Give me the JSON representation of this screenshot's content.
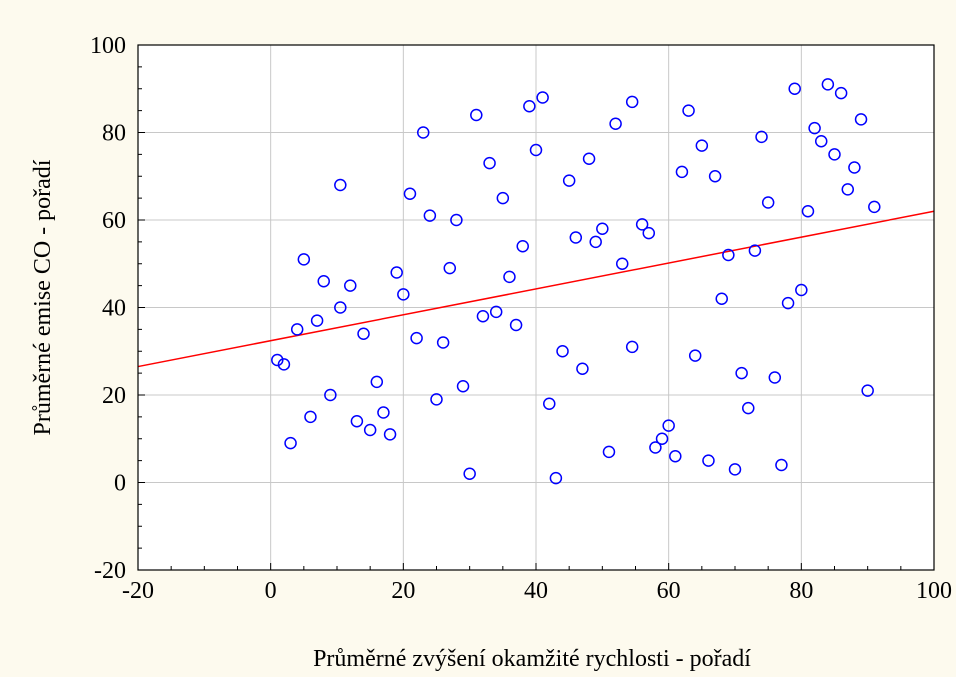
{
  "chart_data": {
    "type": "scatter",
    "title": "",
    "xlabel": "Průměrné zvýšení okamžité rychlosti - pořadí",
    "ylabel": "Průměrné emise CO - pořadí",
    "xlim": [
      -20,
      100
    ],
    "ylim": [
      -20,
      100
    ],
    "xticks": [
      "-20",
      "0",
      "20",
      "40",
      "60",
      "80",
      "100"
    ],
    "yticks": [
      "-20",
      "0",
      "20",
      "40",
      "60",
      "80",
      "100"
    ],
    "grid": true,
    "colors": {
      "background": "#fdfaee",
      "plot_area": "#ffffff",
      "grid": "#c8c8c8",
      "points": "#0000ff",
      "trend_line": "#ff0000"
    },
    "series": [
      {
        "type": "scatter",
        "points": [
          [
            1,
            28
          ],
          [
            2,
            27
          ],
          [
            3,
            9
          ],
          [
            4,
            35
          ],
          [
            5,
            51
          ],
          [
            6,
            15
          ],
          [
            7,
            37
          ],
          [
            8,
            46
          ],
          [
            9,
            20
          ],
          [
            10.5,
            40
          ],
          [
            10.5,
            68
          ],
          [
            12,
            45
          ],
          [
            13,
            14
          ],
          [
            14,
            34
          ],
          [
            15,
            12
          ],
          [
            16,
            23
          ],
          [
            17,
            16
          ],
          [
            18,
            11
          ],
          [
            19,
            48
          ],
          [
            20,
            43
          ],
          [
            21,
            66
          ],
          [
            22,
            33
          ],
          [
            23,
            80
          ],
          [
            24,
            61
          ],
          [
            25,
            19
          ],
          [
            26,
            32
          ],
          [
            27,
            49
          ],
          [
            28,
            60
          ],
          [
            29,
            22
          ],
          [
            30,
            2
          ],
          [
            31,
            84
          ],
          [
            32,
            38
          ],
          [
            33,
            73
          ],
          [
            34,
            39
          ],
          [
            35,
            65
          ],
          [
            36,
            47
          ],
          [
            37,
            36
          ],
          [
            38,
            54
          ],
          [
            39,
            86
          ],
          [
            40,
            76
          ],
          [
            41,
            88
          ],
          [
            42,
            18
          ],
          [
            43,
            1
          ],
          [
            44,
            30
          ],
          [
            45,
            69
          ],
          [
            46,
            56
          ],
          [
            47,
            26
          ],
          [
            48,
            74
          ],
          [
            49,
            55
          ],
          [
            50,
            58
          ],
          [
            51,
            7
          ],
          [
            52,
            82
          ],
          [
            53,
            50
          ],
          [
            54.5,
            87
          ],
          [
            54.5,
            31
          ],
          [
            56,
            59
          ],
          [
            57,
            57
          ],
          [
            58,
            8
          ],
          [
            59,
            10
          ],
          [
            60,
            13
          ],
          [
            61,
            6
          ],
          [
            62,
            71
          ],
          [
            63,
            85
          ],
          [
            64,
            29
          ],
          [
            65,
            77
          ],
          [
            66,
            5
          ],
          [
            67,
            70
          ],
          [
            68,
            42
          ],
          [
            69,
            52
          ],
          [
            70,
            3
          ],
          [
            71,
            25
          ],
          [
            72,
            17
          ],
          [
            73,
            53
          ],
          [
            74,
            79
          ],
          [
            75,
            64
          ],
          [
            76,
            24
          ],
          [
            77,
            4
          ],
          [
            78,
            41
          ],
          [
            79,
            90
          ],
          [
            80,
            44
          ],
          [
            81,
            62
          ],
          [
            82,
            81
          ],
          [
            83,
            78
          ],
          [
            84,
            91
          ],
          [
            85,
            75
          ],
          [
            86,
            89
          ],
          [
            87,
            67
          ],
          [
            88,
            72
          ],
          [
            89,
            83
          ],
          [
            90,
            21
          ],
          [
            91,
            63
          ]
        ]
      }
    ],
    "trend_line": {
      "x": [
        -20,
        100
      ],
      "y": [
        26.5,
        62
      ]
    }
  }
}
